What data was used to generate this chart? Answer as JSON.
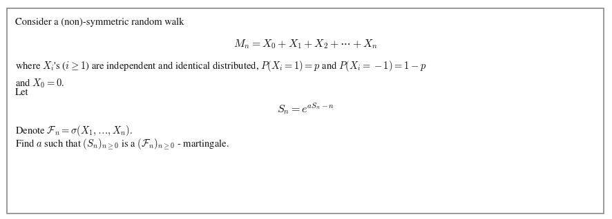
{
  "fig_width": 8.86,
  "fig_height": 3.18,
  "dpi": 100,
  "background_color": "#ffffff",
  "box_color": "#ffffff",
  "box_edge_color": "#888888",
  "text_color": "#111111",
  "font_size": 10.5,
  "line1": "Consider a (non)-symmetric random walk",
  "line_eq1": "$M_n = X_0 + X_1 + X_2 + \\cdots + X_n$",
  "line2": "where $X_i$'s ($i \\geq 1$) are independent and identical distributed, $P(X_i = 1) = p$ and $P(X_i = -1) = 1 - p$",
  "line3": "and $X_0 = 0$.",
  "line4": "Let",
  "line_eq2": "$S_n = e^{aS_n-n}$",
  "line5": "Denote $\\mathcal{F}_n = \\sigma(X_1,\\ldots,X_n)$.",
  "line6": "Find $a$ such that $(S_n)_{n\\geq 0}$ is a $(\\mathcal{F}_n)_{n\\geq 0}$ - martingale."
}
